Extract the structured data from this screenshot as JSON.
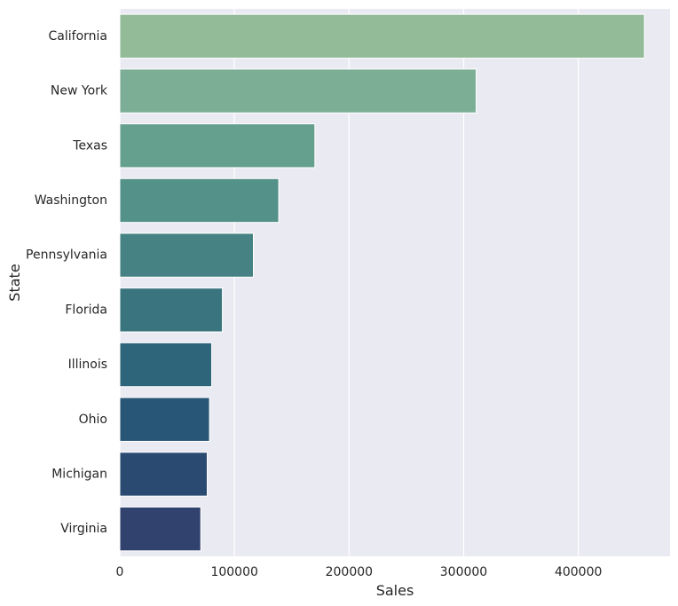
{
  "chart_data": {
    "type": "bar",
    "orientation": "horizontal",
    "categories": [
      "California",
      "New York",
      "Texas",
      "Washington",
      "Pennsylvania",
      "Florida",
      "Illinois",
      "Ohio",
      "Michigan",
      "Virginia"
    ],
    "values": [
      457688,
      310876,
      170188,
      138641,
      116512,
      89474,
      80166,
      78258,
      76270,
      70637
    ],
    "xlabel": "Sales",
    "ylabel": "State",
    "xlim": [
      0,
      480000
    ],
    "xticks": [
      0,
      100000,
      200000,
      300000,
      400000
    ],
    "xtick_labels": [
      "0",
      "100000",
      "200000",
      "300000",
      "400000"
    ],
    "grid": true,
    "style": {
      "background": "#EAEAF2",
      "grid_color": "#FFFFFF",
      "bar_colors": [
        "#93BB98",
        "#7BAE95",
        "#65A08E",
        "#549189",
        "#468284",
        "#3A747F",
        "#2F657A",
        "#285676",
        "#2B4A72",
        "#32426F"
      ]
    }
  }
}
